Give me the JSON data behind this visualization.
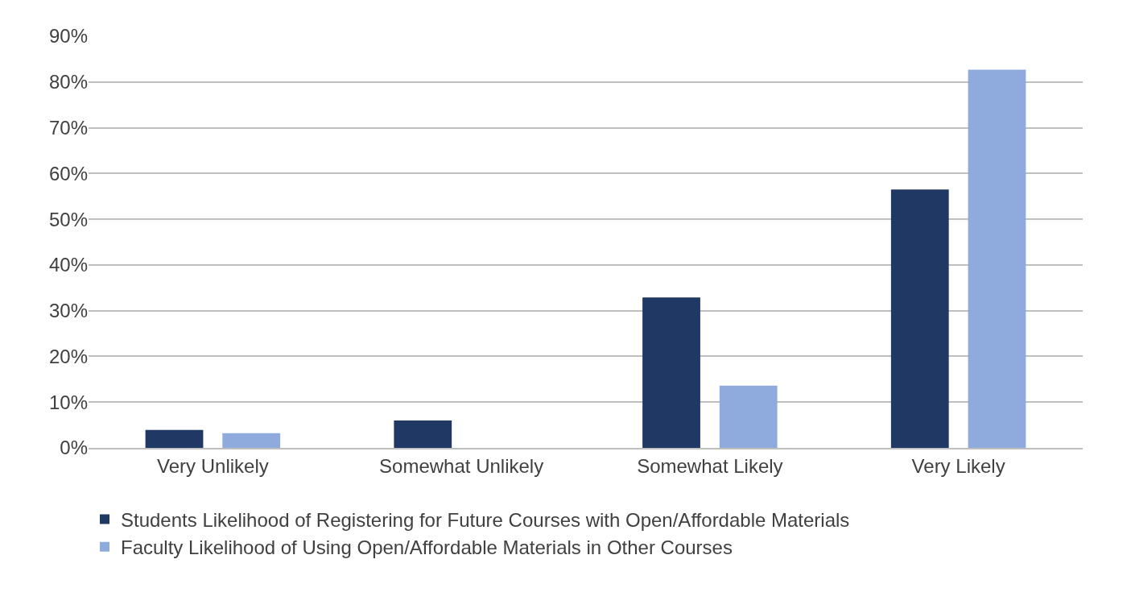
{
  "chart_data": {
    "type": "bar",
    "categories": [
      "Very Unlikely",
      "Somewhat Unlikely",
      "Somewhat Likely",
      "Very Likely"
    ],
    "series": [
      {
        "name": "Students Likelihood of Registering for Future Courses with Open/Affordable Materials",
        "color": "#203864",
        "values": [
          3.9,
          6.0,
          32.9,
          56.5
        ]
      },
      {
        "name": "Faculty Likelihood of Using Open/Affordable Materials in Other Courses",
        "color": "#8faadc",
        "values": [
          3.2,
          0,
          13.6,
          82.7
        ]
      }
    ],
    "ylim": [
      0,
      90
    ],
    "yticks": [
      {
        "value": 0,
        "label": "0%"
      },
      {
        "value": 10,
        "label": "10%"
      },
      {
        "value": 20,
        "label": "20%"
      },
      {
        "value": 30,
        "label": "30%"
      },
      {
        "value": 40,
        "label": "40%"
      },
      {
        "value": 50,
        "label": "50%"
      },
      {
        "value": 60,
        "label": "60%"
      },
      {
        "value": 70,
        "label": "70%"
      },
      {
        "value": 80,
        "label": "80%"
      },
      {
        "value": 90,
        "label": "90%"
      }
    ],
    "grid": "y",
    "legend": "bottom"
  }
}
